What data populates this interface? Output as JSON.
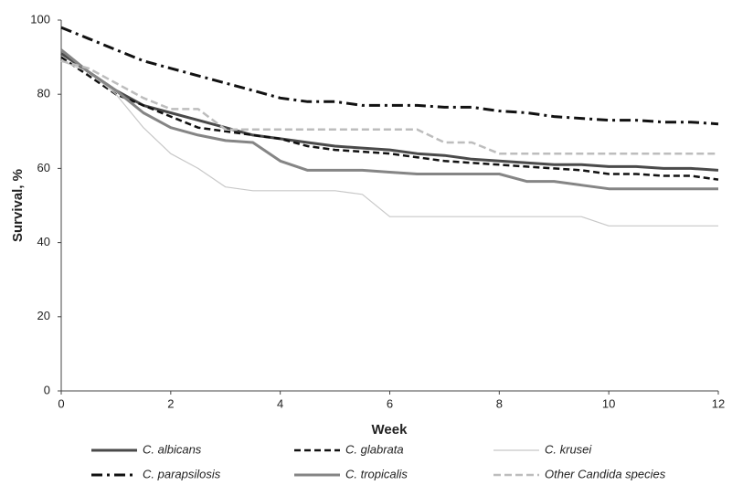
{
  "chart_data": {
    "type": "line",
    "xlabel": "Week",
    "ylabel": "Survival, %",
    "x": [
      0,
      0.5,
      1,
      1.5,
      2,
      2.5,
      3,
      3.5,
      4,
      4.5,
      5,
      5.5,
      6,
      6.5,
      7,
      7.5,
      8,
      8.5,
      9,
      9.5,
      10,
      10.5,
      11,
      11.5,
      12
    ],
    "xlim": [
      0,
      12
    ],
    "xticks": [
      0,
      2,
      4,
      6,
      8,
      10,
      12
    ],
    "ylim": [
      0,
      100
    ],
    "yticks": [
      0,
      20,
      40,
      60,
      80,
      100
    ],
    "grid": false,
    "legend": "bottom",
    "series": [
      {
        "name": "C. albicans",
        "color": "#4a4a4a",
        "width": 3,
        "dash": "none",
        "values": [
          91,
          86,
          81,
          77,
          75,
          73,
          71,
          69,
          68,
          67,
          66,
          65.5,
          65,
          64,
          63.5,
          62.5,
          62,
          61.5,
          61,
          61,
          60.5,
          60.5,
          60,
          60,
          59.5
        ]
      },
      {
        "name": "C. glabrata",
        "color": "#111111",
        "width": 2.5,
        "dash": "7 4",
        "values": [
          90,
          85,
          80,
          77,
          74,
          71,
          70,
          69,
          68,
          66,
          65,
          64.5,
          64,
          63,
          62,
          61.5,
          61,
          60.5,
          60,
          59.5,
          58.5,
          58.5,
          58,
          58,
          57
        ]
      },
      {
        "name": "C. krusei",
        "color": "#c8c8c8",
        "width": 1.2,
        "dash": "none",
        "values": [
          89,
          86,
          80,
          71,
          64,
          60,
          55,
          54,
          54,
          54,
          54,
          53,
          47,
          47,
          47,
          47,
          47,
          47,
          47,
          47,
          44.5,
          44.5,
          44.5,
          44.5,
          44.5
        ]
      },
      {
        "name": "C. parapsilosis",
        "color": "#111111",
        "width": 3,
        "dash": "12 5 3 5",
        "values": [
          98,
          95,
          92,
          89,
          87,
          85,
          83,
          81,
          79,
          78,
          78,
          77,
          77,
          77,
          76.5,
          76.5,
          75.5,
          75,
          74,
          73.5,
          73,
          73,
          72.5,
          72.5,
          72
        ]
      },
      {
        "name": "C. tropicalis",
        "color": "#858585",
        "width": 3,
        "dash": "none",
        "values": [
          92,
          86,
          81,
          75,
          71,
          69,
          67.5,
          67,
          62,
          59.5,
          59.5,
          59.5,
          59,
          58.5,
          58.5,
          58.5,
          58.5,
          56.5,
          56.5,
          55.5,
          54.5,
          54.5,
          54.5,
          54.5,
          54.5
        ]
      },
      {
        "name": "Other Candida species",
        "color": "#bdbdbd",
        "width": 2.5,
        "dash": "8 4",
        "values": [
          89,
          87,
          83,
          79,
          76,
          76,
          70.5,
          70.5,
          70.5,
          70.5,
          70.5,
          70.5,
          70.5,
          70.5,
          67,
          67,
          64,
          64,
          64,
          64,
          64,
          64,
          64,
          64,
          64
        ]
      }
    ]
  }
}
